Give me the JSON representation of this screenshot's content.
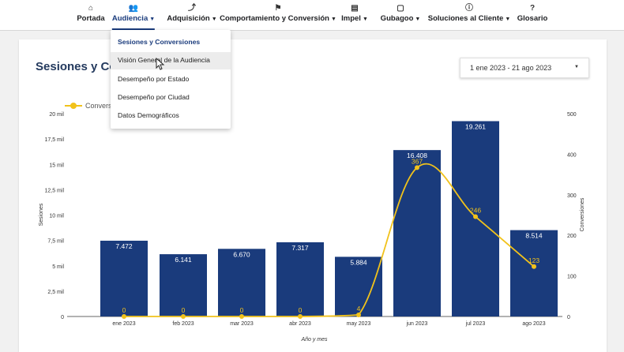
{
  "nav": {
    "items": [
      {
        "label": "Portada",
        "icon": "home-icon",
        "glyph": "⌂",
        "dropdown": false
      },
      {
        "label": "Audiencia",
        "icon": "people-icon",
        "glyph": "👥",
        "dropdown": true
      },
      {
        "label": "Adquisición",
        "icon": "trend-icon",
        "glyph": "⤴",
        "dropdown": true
      },
      {
        "label": "Comportamiento y Conversión",
        "icon": "flag-icon",
        "glyph": "⚑",
        "dropdown": true
      },
      {
        "label": "Impel",
        "icon": "calendar-icon",
        "glyph": "▤",
        "dropdown": true
      },
      {
        "label": "Gubagoo",
        "icon": "chat-icon",
        "glyph": "▢",
        "dropdown": true
      },
      {
        "label": "Soluciones al Cliente",
        "icon": "info-icon",
        "glyph": "ⓘ",
        "dropdown": true
      },
      {
        "label": "Glosario",
        "icon": "help-icon",
        "glyph": "?",
        "dropdown": false
      }
    ]
  },
  "dropdown": {
    "items": [
      {
        "label": "Sesiones y Conversiones",
        "header": true
      },
      {
        "label": "Visión General de la Audiencia",
        "header": false
      },
      {
        "label": "Desempeño por Estado",
        "header": false
      },
      {
        "label": "Desempeño por Ciudad",
        "header": false
      },
      {
        "label": "Datos Demográficos",
        "header": false
      }
    ]
  },
  "page": {
    "title": "Sesiones y Conv",
    "date_range": "1 ene 2023 - 21 ago 2023"
  },
  "legend": {
    "conversions": "Conversio"
  },
  "colors": {
    "bar": "#1a3b7c",
    "line": "#f1c21b",
    "title": "#243a5e"
  },
  "chart_data": {
    "type": "bar",
    "categories": [
      "ene 2023",
      "feb 2023",
      "mar 2023",
      "abr 2023",
      "may 2023",
      "jun 2023",
      "jul 2023",
      "ago 2023"
    ],
    "series": [
      {
        "name": "Sesiones",
        "type": "bar",
        "axis": "left",
        "values": [
          7472,
          6141,
          6670,
          7317,
          5884,
          16408,
          19261,
          8514
        ],
        "labels": [
          "7.472",
          "6.141",
          "6.670",
          "7.317",
          "5.884",
          "16.408",
          "19.261",
          "8.514"
        ]
      },
      {
        "name": "Conversiones",
        "type": "line",
        "axis": "right",
        "values": [
          0,
          0,
          0,
          0,
          4,
          367,
          246,
          123
        ],
        "labels": [
          "0",
          "0",
          "0",
          "0",
          "4",
          "367",
          "246",
          "123"
        ]
      }
    ],
    "xlabel": "Año y mes",
    "ylabel_left": "Sesiones",
    "ylabel_right": "Conversiones",
    "ylim_left": [
      0,
      20000
    ],
    "ylim_right": [
      0,
      500
    ],
    "yticks_left": [
      "0",
      "2,5 mil",
      "5 mil",
      "7,5 mil",
      "10 mil",
      "12,5 mil",
      "15 mil",
      "17,5 mil",
      "20 mil"
    ],
    "yticks_right": [
      "0",
      "100",
      "200",
      "300",
      "400",
      "500"
    ],
    "grid": false,
    "legend_position": "top-left"
  }
}
